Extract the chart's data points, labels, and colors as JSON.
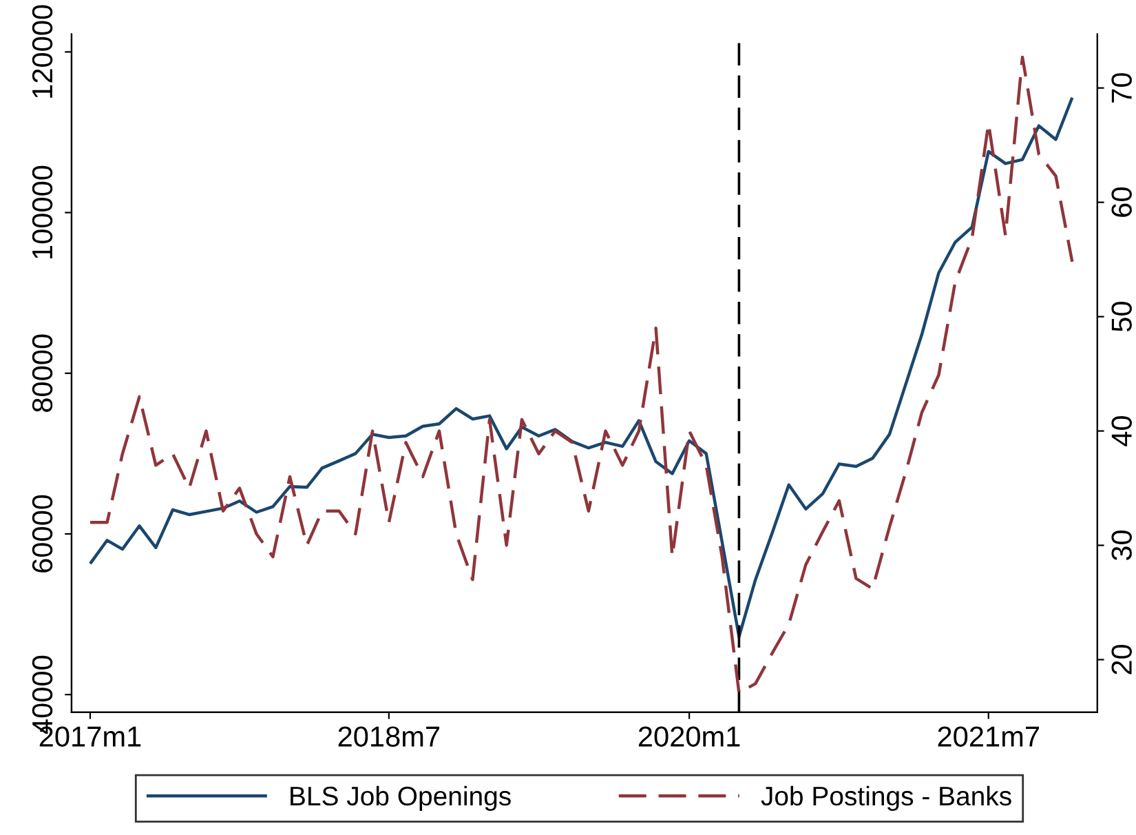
{
  "chart_data": {
    "type": "line",
    "x": [
      "2017-01",
      "2017-02",
      "2017-03",
      "2017-04",
      "2017-05",
      "2017-06",
      "2017-07",
      "2017-08",
      "2017-09",
      "2017-10",
      "2017-11",
      "2017-12",
      "2018-01",
      "2018-02",
      "2018-03",
      "2018-04",
      "2018-05",
      "2018-06",
      "2018-07",
      "2018-08",
      "2018-09",
      "2018-10",
      "2018-11",
      "2018-12",
      "2019-01",
      "2019-02",
      "2019-03",
      "2019-04",
      "2019-05",
      "2019-06",
      "2019-07",
      "2019-08",
      "2019-09",
      "2019-10",
      "2019-11",
      "2019-12",
      "2020-01",
      "2020-02",
      "2020-03",
      "2020-04",
      "2020-05",
      "2020-06",
      "2020-07",
      "2020-08",
      "2020-09",
      "2020-10",
      "2020-11",
      "2020-12",
      "2021-01",
      "2021-02",
      "2021-03",
      "2021-04",
      "2021-05",
      "2021-06",
      "2021-07",
      "2021-08",
      "2021-09",
      "2021-10",
      "2021-11",
      "2021-12"
    ],
    "series": [
      {
        "name": "BLS Job Openings",
        "color": "#1a476f",
        "line_style": "solid",
        "values": [
          56300,
          59200,
          58100,
          61000,
          58300,
          63000,
          62400,
          62800,
          63200,
          64100,
          62700,
          63400,
          65900,
          65800,
          68200,
          69100,
          70000,
          72400,
          72000,
          72200,
          73400,
          73700,
          75600,
          74300,
          74700,
          70600,
          73300,
          72200,
          73000,
          71500,
          70700,
          71400,
          70900,
          74100,
          69000,
          67500,
          71600,
          70000,
          59000,
          47200,
          54300,
          60200,
          66100,
          63100,
          65000,
          68700,
          68400,
          69400,
          72400,
          78900,
          84800,
          92500,
          96300,
          98200,
          107600,
          106100,
          106600,
          110800,
          109100,
          114300
        ]
      },
      {
        "name": "Job Postings - Banks",
        "color": "#90353b",
        "line_style": "dashed",
        "axis": "y2",
        "values": [
          32,
          32,
          38,
          43,
          37,
          38,
          35,
          40,
          33,
          35,
          31,
          29,
          36,
          30,
          33,
          33,
          31,
          40,
          32,
          39,
          36,
          40,
          31,
          27,
          41,
          30,
          41,
          38,
          40,
          39,
          33,
          40,
          37,
          40,
          49,
          29,
          40,
          37,
          29,
          17.1,
          17.9,
          20.6,
          23.1,
          28.3,
          31.2,
          33.9,
          27.1,
          26.2,
          31.6,
          36.6,
          41.6,
          44.9,
          53,
          56.9,
          66.9,
          57.1,
          72.7,
          64.2,
          62.3,
          54.8
        ]
      }
    ],
    "xlim": [
      "2016-11-28",
      "2022-01-16"
    ],
    "xticks": [
      {
        "value": "2017-01",
        "label": "2017m1"
      },
      {
        "value": "2018-07",
        "label": "2018m7"
      },
      {
        "value": "2020-01",
        "label": "2020m1"
      },
      {
        "value": "2021-07",
        "label": "2021m7"
      }
    ],
    "ylim": [
      37800,
      122200
    ],
    "yticks": [
      40000,
      60000,
      80000,
      100000,
      120000
    ],
    "y2lim": [
      15.4,
      74.7
    ],
    "y2ticks": [
      20,
      30,
      40,
      50,
      60,
      70
    ],
    "ref_lines": [
      {
        "axis": "x",
        "value": "2020-04",
        "color": "#000000",
        "line_style": "dashed"
      }
    ],
    "grid": false,
    "legend": "bottom"
  }
}
